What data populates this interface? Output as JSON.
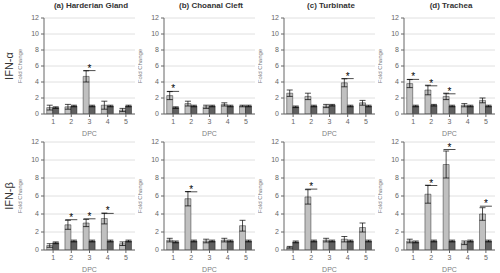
{
  "row_labels": [
    "IFN-α",
    "IFN-β"
  ],
  "chart_data": [
    {
      "type": "bar",
      "title": "(a) Harderian Gland",
      "xlabel": "DPC",
      "ylabel": "Fold Change",
      "categories": [
        1,
        2,
        3,
        4,
        5
      ],
      "series": [
        {
          "color": "#c0c0c0",
          "values": [
            0.8,
            0.9,
            4.7,
            1.1,
            0.5
          ],
          "errors": [
            0.3,
            0.3,
            0.7,
            0.5,
            0.2
          ]
        },
        {
          "color": "#606060",
          "values": [
            0.8,
            1.0,
            1.0,
            1.0,
            1.0
          ],
          "errors": [
            0.1,
            0.1,
            0.1,
            0.1,
            0.1
          ]
        }
      ],
      "annotations": [
        {
          "text": "*",
          "x": 3,
          "y": 5.8
        }
      ],
      "ylim": [
        0,
        12
      ],
      "yticks": [
        0,
        2,
        4,
        6,
        8,
        10,
        12
      ],
      "grid": true
    },
    {
      "type": "bar",
      "title": "(b) Choanal Cleft",
      "xlabel": "DPC",
      "ylabel": "Fold Change",
      "categories": [
        1,
        2,
        3,
        4,
        5
      ],
      "series": [
        {
          "color": "#c0c0c0",
          "values": [
            2.3,
            1.3,
            0.9,
            1.2,
            1.0
          ],
          "errors": [
            0.5,
            0.3,
            0.2,
            0.2,
            0.1
          ]
        },
        {
          "color": "#606060",
          "values": [
            0.8,
            1.0,
            1.0,
            1.0,
            1.0
          ],
          "errors": [
            0.1,
            0.1,
            0.1,
            0.1,
            0.1
          ]
        }
      ],
      "annotations": [
        {
          "text": "*",
          "x": 1,
          "y": 3.2
        }
      ],
      "ylim": [
        0,
        12
      ],
      "yticks": [
        0,
        2,
        4,
        6,
        8,
        10,
        12
      ],
      "grid": true
    },
    {
      "type": "bar",
      "title": "(c) Turbinate",
      "xlabel": "DPC",
      "ylabel": "Fold Change",
      "categories": [
        1,
        2,
        3,
        4,
        5
      ],
      "series": [
        {
          "color": "#c0c0c0",
          "values": [
            2.6,
            2.2,
            1.0,
            3.9,
            1.4
          ],
          "errors": [
            0.4,
            0.4,
            0.2,
            0.5,
            0.3
          ]
        },
        {
          "color": "#606060",
          "values": [
            0.9,
            1.0,
            1.1,
            1.0,
            1.0
          ],
          "errors": [
            0.1,
            0.1,
            0.1,
            0.1,
            0.1
          ]
        }
      ],
      "annotations": [
        {
          "text": "*",
          "x": 4,
          "y": 4.8
        }
      ],
      "ylim": [
        0,
        12
      ],
      "yticks": [
        0,
        2,
        4,
        6,
        8,
        10,
        12
      ],
      "grid": true
    },
    {
      "type": "bar",
      "title": "(d) Trachea",
      "xlabel": "DPC",
      "ylabel": "Fold Change",
      "categories": [
        1,
        2,
        3,
        4,
        5
      ],
      "series": [
        {
          "color": "#c0c0c0",
          "values": [
            3.8,
            3.0,
            2.2,
            1.1,
            1.7
          ],
          "errors": [
            0.5,
            0.6,
            0.4,
            0.2,
            0.3
          ]
        },
        {
          "color": "#606060",
          "values": [
            1.0,
            1.1,
            1.0,
            1.0,
            1.0
          ],
          "errors": [
            0.1,
            0.1,
            0.1,
            0.1,
            0.1
          ]
        }
      ],
      "annotations": [
        {
          "text": "*",
          "x": 1,
          "y": 4.7
        },
        {
          "text": "*",
          "x": 2,
          "y": 3.9
        },
        {
          "text": "*",
          "x": 3,
          "y": 2.9
        }
      ],
      "ylim": [
        0,
        12
      ],
      "yticks": [
        0,
        2,
        4,
        6,
        8,
        10,
        12
      ],
      "grid": true
    },
    {
      "type": "bar",
      "xlabel": "DPC",
      "ylabel": "Fold Change",
      "categories": [
        1,
        2,
        3,
        4,
        5
      ],
      "series": [
        {
          "color": "#c0c0c0",
          "values": [
            0.5,
            2.8,
            3.0,
            3.5,
            0.7
          ],
          "errors": [
            0.2,
            0.5,
            0.4,
            0.6,
            0.2
          ]
        },
        {
          "color": "#606060",
          "values": [
            0.8,
            1.0,
            1.0,
            1.0,
            1.0
          ],
          "errors": [
            0.1,
            0.1,
            0.1,
            0.1,
            0.1
          ]
        }
      ],
      "annotations": [
        {
          "text": "*",
          "x": 2,
          "y": 3.7
        },
        {
          "text": "*",
          "x": 3,
          "y": 3.8
        },
        {
          "text": "*",
          "x": 4,
          "y": 4.4
        }
      ],
      "ylim": [
        0,
        12
      ],
      "yticks": [
        0,
        2,
        4,
        6,
        8,
        10,
        12
      ],
      "grid": true
    },
    {
      "type": "bar",
      "xlabel": "DPC",
      "ylabel": "Fold Change",
      "categories": [
        1,
        2,
        3,
        4,
        5
      ],
      "series": [
        {
          "color": "#c0c0c0",
          "values": [
            1.1,
            5.7,
            1.0,
            1.1,
            2.7
          ],
          "errors": [
            0.2,
            0.8,
            0.2,
            0.2,
            0.6
          ]
        },
        {
          "color": "#606060",
          "values": [
            0.9,
            1.0,
            1.0,
            1.0,
            1.0
          ],
          "errors": [
            0.1,
            0.1,
            0.1,
            0.1,
            0.1
          ]
        }
      ],
      "annotations": [
        {
          "text": "*",
          "x": 2,
          "y": 6.8
        }
      ],
      "ylim": [
        0,
        12
      ],
      "yticks": [
        0,
        2,
        4,
        6,
        8,
        10,
        12
      ],
      "grid": true
    },
    {
      "type": "bar",
      "xlabel": "DPC",
      "ylabel": "Fold Change",
      "categories": [
        1,
        2,
        3,
        4,
        5
      ],
      "series": [
        {
          "color": "#c0c0c0",
          "values": [
            0.3,
            5.9,
            1.1,
            1.2,
            2.5
          ],
          "errors": [
            0.1,
            0.8,
            0.2,
            0.3,
            0.5
          ]
        },
        {
          "color": "#606060",
          "values": [
            0.9,
            1.0,
            1.0,
            1.0,
            1.0
          ],
          "errors": [
            0.1,
            0.1,
            0.1,
            0.1,
            0.1
          ]
        }
      ],
      "annotations": [
        {
          "text": "*",
          "x": 2,
          "y": 7.1
        }
      ],
      "ylim": [
        0,
        12
      ],
      "yticks": [
        0,
        2,
        4,
        6,
        8,
        10,
        12
      ],
      "grid": true
    },
    {
      "type": "bar",
      "xlabel": "DPC",
      "ylabel": "Fold Change",
      "categories": [
        1,
        2,
        3,
        4,
        5
      ],
      "series": [
        {
          "color": "#c0c0c0",
          "values": [
            1.0,
            6.2,
            9.5,
            0.8,
            4.0
          ],
          "errors": [
            0.2,
            1.0,
            1.5,
            0.2,
            0.7
          ]
        },
        {
          "color": "#606060",
          "values": [
            0.9,
            1.0,
            1.0,
            1.0,
            1.0
          ],
          "errors": [
            0.1,
            0.1,
            0.1,
            0.1,
            0.1
          ]
        }
      ],
      "annotations": [
        {
          "text": "*",
          "x": 2,
          "y": 7.5
        },
        {
          "text": "*",
          "x": 3,
          "y": 11.5
        },
        {
          "text": "*",
          "x": 5,
          "y": 5.2
        }
      ],
      "ylim": [
        0,
        12
      ],
      "yticks": [
        0,
        2,
        4,
        6,
        8,
        10,
        12
      ],
      "grid": true
    }
  ]
}
